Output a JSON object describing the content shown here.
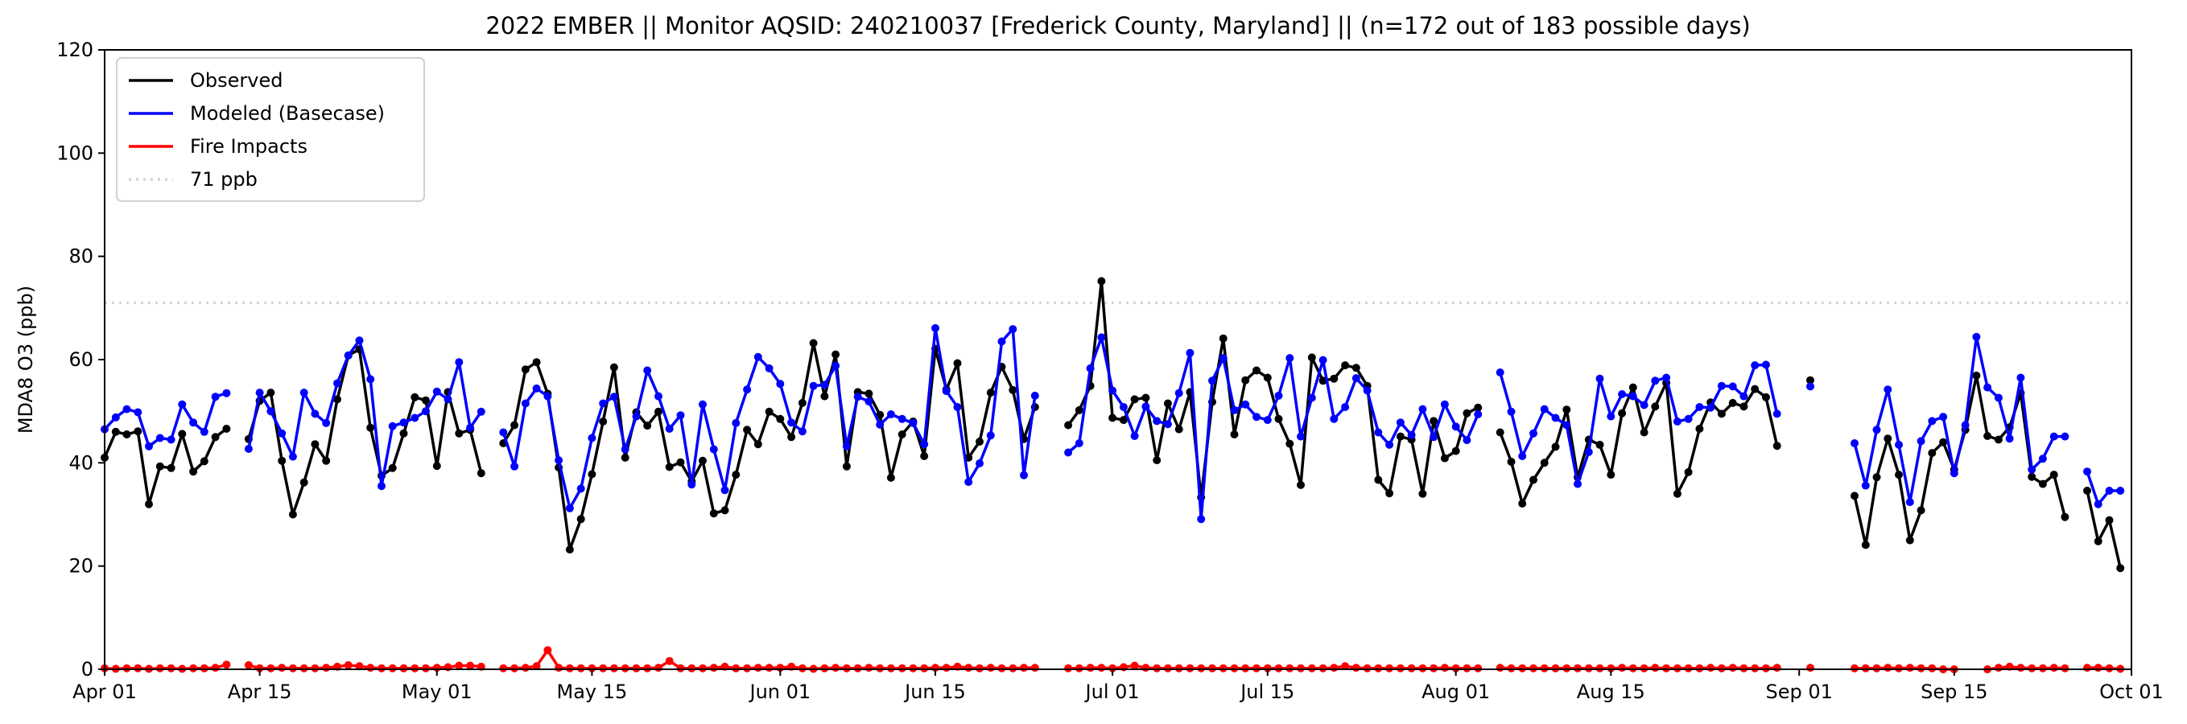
{
  "chart_data": {
    "type": "line",
    "title": "2022 EMBER || Monitor AQSID: 240210037 [Frederick County, Maryland] || (n=172 out of 183 possible days)",
    "xlabel": "",
    "ylabel": "MDA8 O3 (ppb)",
    "ylim": [
      0,
      120
    ],
    "yticks": [
      "0",
      "20",
      "40",
      "60",
      "80",
      "100",
      "120"
    ],
    "ytick_values": [
      0,
      20,
      40,
      60,
      80,
      100,
      120
    ],
    "x_start": "2022-04-01",
    "x_step_days": 1,
    "xlim_days": [
      0,
      183
    ],
    "xticks": [
      "Apr 01",
      "Apr 15",
      "May 01",
      "May 15",
      "Jun 01",
      "Jun 15",
      "Jul 01",
      "Jul 15",
      "Aug 01",
      "Aug 15",
      "Sep 01",
      "Sep 15",
      "Oct 01"
    ],
    "xtick_days": [
      0,
      14,
      30,
      44,
      61,
      75,
      91,
      105,
      122,
      136,
      153,
      167,
      183
    ],
    "grid": false,
    "legend_position": "top-left",
    "reference_line": {
      "label": "71 ppb",
      "value": 71,
      "color": "#d3d3d3",
      "style": "dotted"
    },
    "series": [
      {
        "name": "Observed",
        "color": "#000000",
        "values": [
          41,
          46,
          45.5,
          46.1,
          32,
          39.3,
          39,
          45.6,
          38.3,
          40.3,
          45,
          46.6,
          null,
          44.6,
          52,
          53.6,
          40.4,
          30,
          36.2,
          43.6,
          40.4,
          52.3,
          60.8,
          62,
          46.8,
          37.5,
          39,
          45.7,
          52.7,
          52.1,
          39.4,
          53.7,
          45.7,
          46.4,
          38,
          null,
          43.8,
          47.3,
          58.1,
          59.5,
          53.4,
          39.1,
          23.2,
          29.1,
          37.8,
          48,
          58.5,
          41,
          49.8,
          47.2,
          49.9,
          39.2,
          40.1,
          36.4,
          40.4,
          30.2,
          30.8,
          37.7,
          46.4,
          43.6,
          49.9,
          48.5,
          45,
          51.6,
          63.2,
          52.9,
          61,
          39.3,
          53.7,
          53.4,
          49.3,
          37.1,
          45.5,
          48,
          41.3,
          62.1,
          54.2,
          59.3,
          41,
          44.1,
          53.6,
          58.6,
          54.1,
          44.6,
          50.8,
          null,
          null,
          47.3,
          50.2,
          54.9,
          75.2,
          48.7,
          48.3,
          52.3,
          52.6,
          40.5,
          51.5,
          46.5,
          53.7,
          33.3,
          51.8,
          64.1,
          45.5,
          56,
          57.9,
          56.5,
          48.5,
          43.7,
          35.7,
          60.4,
          55.9,
          56.3,
          58.9,
          58.4,
          54.9,
          36.7,
          34.1,
          45.1,
          44.5,
          34,
          48.1,
          40.9,
          42.3,
          49.6,
          50.7,
          null,
          45.9,
          40.2,
          32.1,
          36.7,
          40,
          43.1,
          50.3,
          37.2,
          44.5,
          43.5,
          37.7,
          49.6,
          54.6,
          45.9,
          50.9,
          55.5,
          34,
          38.2,
          46.6,
          51.7,
          49.5,
          51.6,
          50.9,
          54.3,
          52.7,
          43.3,
          null,
          null,
          56,
          null,
          null,
          null,
          33.6,
          24.1,
          37.2,
          44.7,
          37.7,
          25,
          30.8,
          41.9,
          44,
          38.7,
          46.4,
          56.9,
          45.2,
          44.5,
          46.9,
          53.5,
          37.3,
          35.9,
          37.7,
          29.5,
          null,
          34.6,
          24.8,
          28.9,
          19.6
        ]
      },
      {
        "name": "Modeled (Basecase)",
        "color": "#0000ff",
        "values": [
          46.5,
          48.8,
          50.4,
          49.8,
          43.2,
          44.8,
          44.5,
          51.3,
          47.8,
          46,
          52.8,
          53.5,
          null,
          42.7,
          53.6,
          50,
          45.7,
          41.2,
          53.6,
          49.5,
          47.7,
          55.4,
          60.8,
          63.7,
          56.2,
          35.5,
          47.1,
          47.8,
          48.7,
          50,
          53.8,
          52.3,
          59.5,
          46.8,
          49.9,
          null,
          45.9,
          39.3,
          51.5,
          54.4,
          52.9,
          40.5,
          31.2,
          35,
          44.8,
          51.5,
          52.8,
          42.6,
          49,
          57.9,
          52.9,
          46.6,
          49.2,
          35.8,
          51.3,
          42.6,
          34.7,
          47.7,
          54.2,
          60.5,
          58.3,
          55.3,
          47.8,
          46.1,
          54.9,
          55.1,
          58.8,
          43.2,
          52.8,
          51.9,
          47.4,
          49.4,
          48.5,
          47.7,
          43.6,
          66.1,
          53.9,
          50.8,
          36.3,
          39.9,
          45.3,
          63.5,
          65.9,
          37.6,
          53,
          null,
          null,
          42,
          43.8,
          58.3,
          64.3,
          54,
          50.8,
          45.2,
          50.9,
          48.1,
          47.5,
          53.5,
          61.3,
          29.1,
          55.9,
          60.3,
          50.2,
          51.3,
          48.9,
          48.3,
          53,
          60.3,
          45.1,
          52.6,
          59.9,
          48.5,
          50.8,
          56.4,
          54,
          45.9,
          43.5,
          47.8,
          45.4,
          50.4,
          45,
          51.3,
          47,
          44.4,
          49.4,
          null,
          57.5,
          49.9,
          41.3,
          45.7,
          50.4,
          48.7,
          47.3,
          35.9,
          42.1,
          56.3,
          49,
          53.3,
          52.9,
          51.2,
          55.9,
          56.5,
          48,
          48.5,
          50.8,
          50.7,
          54.9,
          54.8,
          52.9,
          58.9,
          59,
          49.5,
          null,
          null,
          54.8,
          null,
          null,
          null,
          43.8,
          35.6,
          46.4,
          54.2,
          43.5,
          32.4,
          44.2,
          48.1,
          48.9,
          38,
          47.3,
          64.4,
          54.6,
          52.6,
          44.7,
          56.5,
          38.7,
          40.8,
          45.1,
          45.1,
          null,
          38.3,
          32,
          34.6,
          34.6
        ]
      },
      {
        "name": "Fire Impacts",
        "color": "#ff0000",
        "values": [
          0.2,
          0.1,
          0.2,
          0.2,
          0.1,
          0.2,
          0.2,
          0.1,
          0.2,
          0.2,
          0.3,
          0.9,
          null,
          0.8,
          0.2,
          0.2,
          0.3,
          0.2,
          0.2,
          0.2,
          0.3,
          0.5,
          0.8,
          0.6,
          0.3,
          0.2,
          0.2,
          0.2,
          0.2,
          0.2,
          0.3,
          0.4,
          0.7,
          0.7,
          0.5,
          null,
          0.2,
          0.2,
          0.3,
          0.6,
          3.7,
          0.3,
          0.2,
          0.2,
          0.2,
          0.2,
          0.2,
          0.2,
          0.2,
          0.2,
          0.3,
          1.6,
          0.2,
          0.2,
          0.2,
          0.3,
          0.5,
          0.2,
          0.2,
          0.3,
          0.3,
          0.3,
          0.5,
          0.2,
          0.1,
          0.2,
          0.3,
          0.2,
          0.2,
          0.3,
          0.2,
          0.2,
          0.2,
          0.2,
          0.2,
          0.3,
          0.3,
          0.5,
          0.3,
          0.2,
          0.3,
          0.2,
          0.2,
          0.3,
          0.3,
          null,
          null,
          0.2,
          0.2,
          0.3,
          0.3,
          0.2,
          0.4,
          0.7,
          0.3,
          0.2,
          0.2,
          0.2,
          0.2,
          0.2,
          0.2,
          0.2,
          0.2,
          0.2,
          0.2,
          0.2,
          0.2,
          0.2,
          0.2,
          0.2,
          0.2,
          0.3,
          0.6,
          0.3,
          0.2,
          0.2,
          0.2,
          0.2,
          0.2,
          0.2,
          0.2,
          0.3,
          0.2,
          0.2,
          0.2,
          null,
          0.3,
          0.2,
          0.2,
          0.2,
          0.2,
          0.2,
          0.2,
          0.2,
          0.2,
          0.2,
          0.2,
          0.3,
          0.2,
          0.2,
          0.3,
          0.2,
          0.2,
          0.2,
          0.2,
          0.3,
          0.2,
          0.3,
          0.2,
          0.2,
          0.2,
          0.3,
          null,
          null,
          0.3,
          null,
          null,
          null,
          0.2,
          0.2,
          0.2,
          0.3,
          0.2,
          0.3,
          0.2,
          0.2,
          0.0,
          0.0,
          null,
          null,
          0.0,
          0.3,
          0.5,
          0.3,
          0.2,
          0.2,
          0.3,
          0.2,
          null,
          0.3,
          0.3,
          0.2,
          0.1
        ]
      }
    ]
  }
}
